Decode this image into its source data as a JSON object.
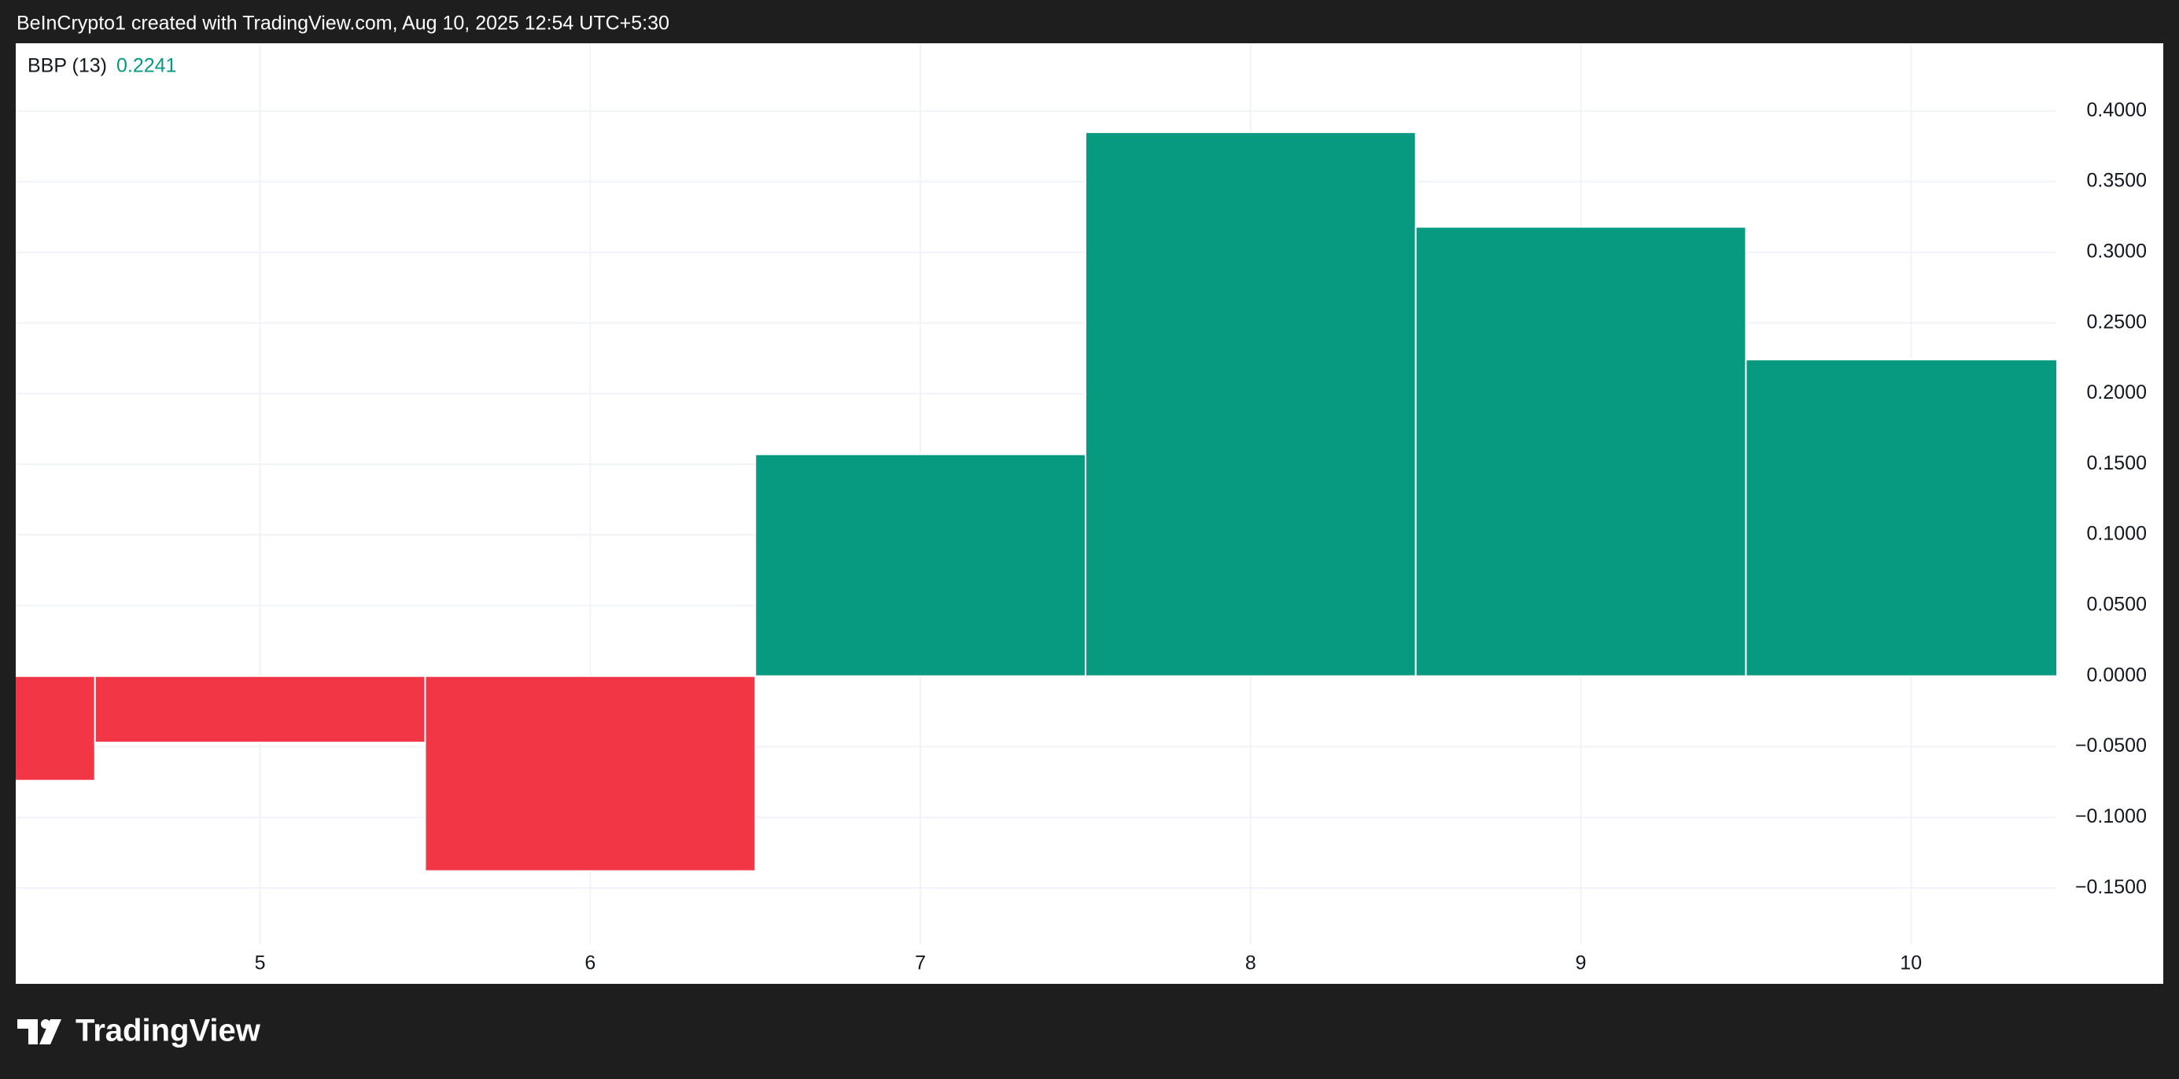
{
  "header": "BeInCrypto1 created with TradingView.com, Aug 10, 2025 12:54 UTC+5:30",
  "branding": "TradingView",
  "chart_data": {
    "type": "bar",
    "indicator_name": "BBP (13)",
    "indicator_value": "0.2241",
    "x": [
      4,
      5,
      6,
      7,
      8,
      9,
      10
    ],
    "values": [
      -0.074,
      -0.047,
      -0.138,
      0.157,
      0.385,
      0.318,
      0.2241
    ],
    "colors": [
      "#f23645",
      "#f23645",
      "#f23645",
      "#089981",
      "#089981",
      "#089981",
      "#089981"
    ],
    "xlim": [
      4.26,
      10.44
    ],
    "ylim": [
      -0.19,
      0.448
    ],
    "xticks": [
      5,
      6,
      7,
      8,
      9,
      10
    ],
    "yticks": [
      {
        "value": 0.4,
        "label": "0.4000"
      },
      {
        "value": 0.35,
        "label": "0.3500"
      },
      {
        "value": 0.3,
        "label": "0.3000"
      },
      {
        "value": 0.25,
        "label": "0.2500"
      },
      {
        "value": 0.2,
        "label": "0.2000"
      },
      {
        "value": 0.15,
        "label": "0.1500"
      },
      {
        "value": 0.1,
        "label": "0.1000"
      },
      {
        "value": 0.05,
        "label": "0.0500"
      },
      {
        "value": 0,
        "label": "0.0000"
      },
      {
        "value": -0.05,
        "label": "−0.0500"
      },
      {
        "value": -0.1,
        "label": "−0.1000"
      },
      {
        "value": -0.15,
        "label": "−0.1500"
      }
    ],
    "grid": true
  }
}
